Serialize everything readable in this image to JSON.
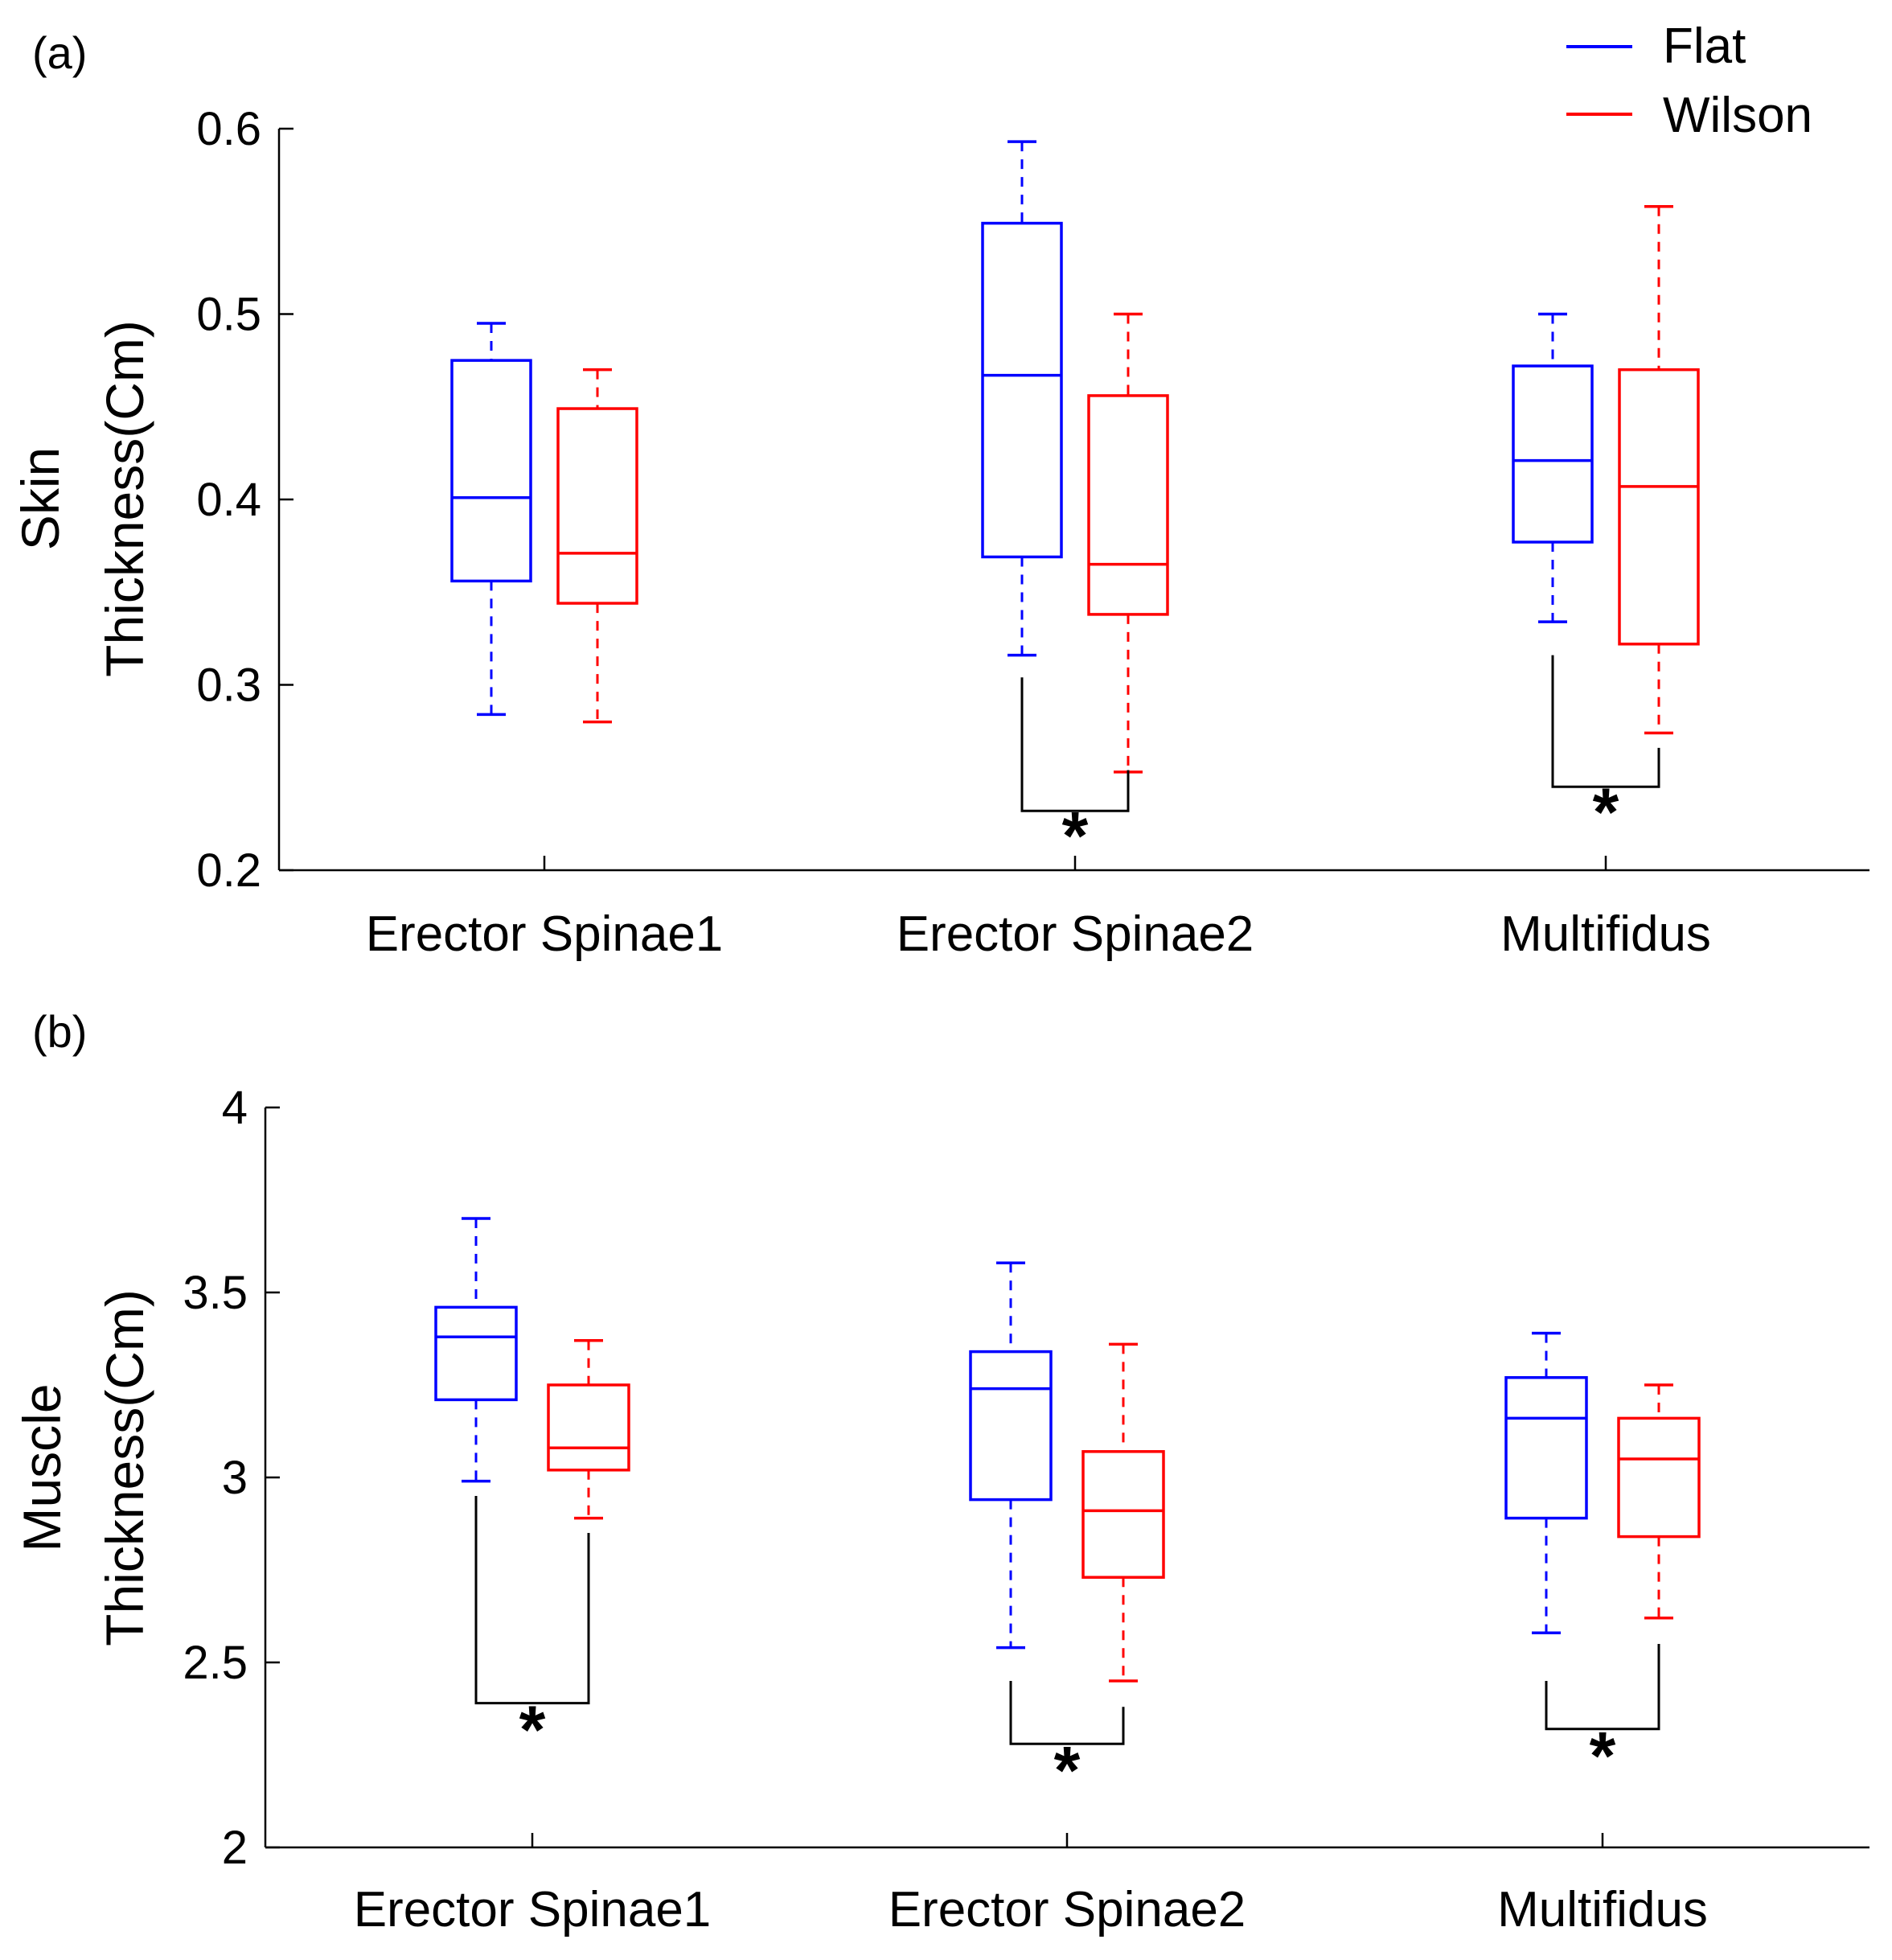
{
  "legend": [
    {
      "name": "Flat",
      "color": "#0000ff"
    },
    {
      "name": "Wilson",
      "color": "#ff0000"
    }
  ],
  "significance_marker": "*",
  "chart_data": [
    {
      "type": "box",
      "panel_label": "(a)",
      "ylabel_line1": "Skin",
      "ylabel_line2": "Thickness(Cm)",
      "ylim": [
        0.2,
        0.6
      ],
      "yticks": [
        0.2,
        0.3,
        0.4,
        0.5,
        0.6
      ],
      "ytick_labels": [
        "0.2",
        "0.3",
        "0.4",
        "0.5",
        "0.6"
      ],
      "categories": [
        "Erector Spinae1",
        "Erector Spinae2",
        "Multifidus"
      ],
      "series": [
        {
          "name": "Flat",
          "color": "#0000ff",
          "boxes": [
            {
              "whisker_low": 0.284,
              "q1": 0.356,
              "median": 0.401,
              "q3": 0.475,
              "whisker_high": 0.495
            },
            {
              "whisker_low": 0.316,
              "q1": 0.369,
              "median": 0.467,
              "q3": 0.549,
              "whisker_high": 0.593
            },
            {
              "whisker_low": 0.334,
              "q1": 0.377,
              "median": 0.421,
              "q3": 0.472,
              "whisker_high": 0.5
            }
          ]
        },
        {
          "name": "Wilson",
          "color": "#ff0000",
          "boxes": [
            {
              "whisker_low": 0.28,
              "q1": 0.344,
              "median": 0.371,
              "q3": 0.449,
              "whisker_high": 0.47
            },
            {
              "whisker_low": 0.253,
              "q1": 0.338,
              "median": 0.365,
              "q3": 0.456,
              "whisker_high": 0.5
            },
            {
              "whisker_low": 0.274,
              "q1": 0.322,
              "median": 0.407,
              "q3": 0.47,
              "whisker_high": 0.558
            }
          ]
        }
      ],
      "significance": [
        {
          "category_index": 1,
          "left_top": 0.304,
          "right_top": 0.254,
          "bottom": 0.232
        },
        {
          "category_index": 2,
          "left_top": 0.316,
          "right_top": 0.266,
          "bottom": 0.245
        }
      ]
    },
    {
      "type": "box",
      "panel_label": "(b)",
      "ylabel_line1": "Muscle",
      "ylabel_line2": "Thickness(Cm)",
      "ylim": [
        2,
        4
      ],
      "yticks": [
        2,
        2.5,
        3,
        3.5,
        4
      ],
      "ytick_labels": [
        "2",
        "2.5",
        "3",
        "3.5",
        "4"
      ],
      "categories": [
        "Erector Spinae1",
        "Erector Spinae2",
        "Multifidus"
      ],
      "series": [
        {
          "name": "Flat",
          "color": "#0000ff",
          "boxes": [
            {
              "whisker_low": 2.99,
              "q1": 3.21,
              "median": 3.38,
              "q3": 3.46,
              "whisker_high": 3.7
            },
            {
              "whisker_low": 2.54,
              "q1": 2.94,
              "median": 3.24,
              "q3": 3.34,
              "whisker_high": 3.58
            },
            {
              "whisker_low": 2.58,
              "q1": 2.89,
              "median": 3.16,
              "q3": 3.27,
              "whisker_high": 3.39
            }
          ]
        },
        {
          "name": "Wilson",
          "color": "#ff0000",
          "boxes": [
            {
              "whisker_low": 2.89,
              "q1": 3.02,
              "median": 3.08,
              "q3": 3.25,
              "whisker_high": 3.37
            },
            {
              "whisker_low": 2.45,
              "q1": 2.73,
              "median": 2.91,
              "q3": 3.07,
              "whisker_high": 3.36
            },
            {
              "whisker_low": 2.62,
              "q1": 2.84,
              "median": 3.05,
              "q3": 3.16,
              "whisker_high": 3.25
            }
          ]
        }
      ],
      "significance": [
        {
          "category_index": 0,
          "left_top": 2.95,
          "right_top": 2.85,
          "bottom": 2.39
        },
        {
          "category_index": 1,
          "left_top": 2.45,
          "right_top": 2.38,
          "bottom": 2.28
        },
        {
          "category_index": 2,
          "left_top": 2.45,
          "right_top": 2.55,
          "bottom": 2.32
        }
      ]
    }
  ]
}
